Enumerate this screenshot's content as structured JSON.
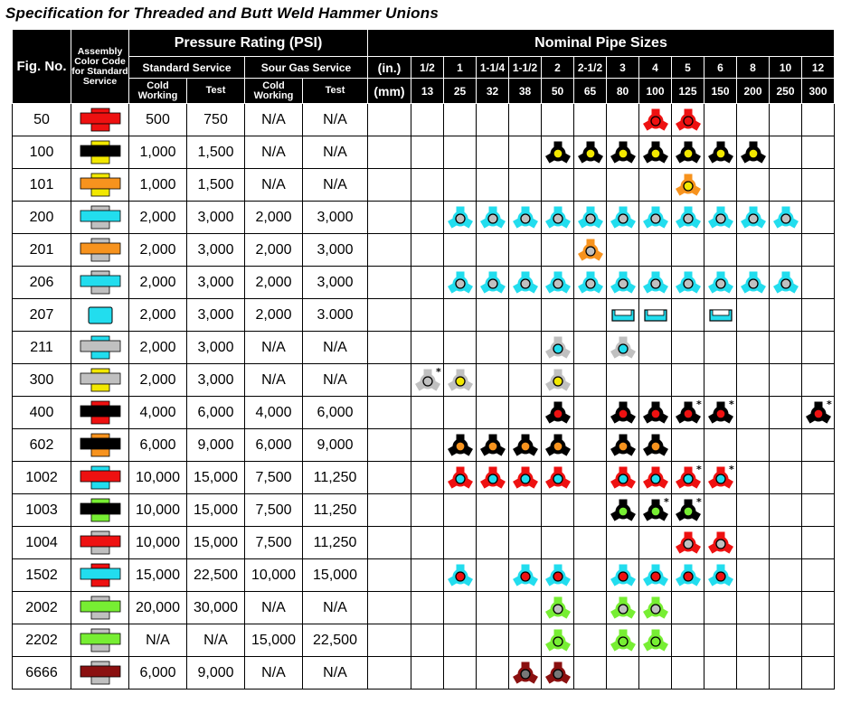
{
  "title": "Specification for Threaded and Butt Weld Hammer Unions",
  "header": {
    "fig": "Fig. No.",
    "assembly": "Assembly Color Code for Standard Service",
    "pressure": "Pressure Rating (PSI)",
    "standard_service": "Standard Service",
    "sour_gas_service": "Sour Gas Service",
    "cold_working": "Cold Working",
    "test": "Test",
    "nominal": "Nominal Pipe Sizes",
    "in_label": "(in.)",
    "mm_label": "(mm)",
    "sizes_in": [
      "1/2",
      "1",
      "1-1/4",
      "1-1/2",
      "2",
      "2-1/2",
      "3",
      "4",
      "5",
      "6",
      "8",
      "10",
      "12"
    ],
    "sizes_mm": [
      "13",
      "25",
      "32",
      "38",
      "50",
      "65",
      "80",
      "100",
      "125",
      "150",
      "200",
      "250",
      "300"
    ]
  },
  "colors": {
    "red": "#ee1111",
    "black": "#000000",
    "yellow": "#f2e800",
    "orange": "#f7931e",
    "cyan": "#22ddee",
    "gray": "#c0c0c0",
    "green": "#77ee33",
    "maroon": "#8b1010",
    "dark_gray": "#777777"
  },
  "rows": [
    {
      "fig": "50",
      "std_cold": "500",
      "std_test": "750",
      "sour_cold": "N/A",
      "sour_test": "N/A",
      "icon": {
        "top": "red",
        "mid": "red",
        "bot": "red"
      },
      "cells": {
        "4": {
          "type": "wing",
          "outer": "red",
          "inner": "red"
        },
        "5": {
          "type": "wing",
          "outer": "red",
          "inner": "red"
        }
      }
    },
    {
      "fig": "100",
      "std_cold": "1,000",
      "std_test": "1,500",
      "sour_cold": "N/A",
      "sour_test": "N/A",
      "icon": {
        "top": "yellow",
        "mid": "black",
        "bot": "yellow"
      },
      "cells": {
        "2": {
          "type": "wing",
          "outer": "black",
          "inner": "yellow"
        },
        "2-1/2": {
          "type": "wing",
          "outer": "black",
          "inner": "yellow"
        },
        "3": {
          "type": "wing",
          "outer": "black",
          "inner": "yellow"
        },
        "4": {
          "type": "wing",
          "outer": "black",
          "inner": "yellow"
        },
        "5": {
          "type": "wing",
          "outer": "black",
          "inner": "yellow"
        },
        "6": {
          "type": "wing",
          "outer": "black",
          "inner": "yellow"
        },
        "8": {
          "type": "wing",
          "outer": "black",
          "inner": "yellow"
        }
      }
    },
    {
      "fig": "101",
      "std_cold": "1,000",
      "std_test": "1,500",
      "sour_cold": "N/A",
      "sour_test": "N/A",
      "icon": {
        "top": "yellow",
        "mid": "orange",
        "bot": "yellow"
      },
      "cells": {
        "5": {
          "type": "wing",
          "outer": "orange",
          "inner": "yellow"
        }
      }
    },
    {
      "fig": "200",
      "std_cold": "2,000",
      "std_test": "3,000",
      "sour_cold": "2,000",
      "sour_test": "3,000",
      "icon": {
        "top": "gray",
        "mid": "cyan",
        "bot": "gray"
      },
      "cells": {
        "1": {
          "type": "wing",
          "outer": "cyan",
          "inner": "gray"
        },
        "1-1/4": {
          "type": "wing",
          "outer": "cyan",
          "inner": "gray"
        },
        "1-1/2": {
          "type": "wing",
          "outer": "cyan",
          "inner": "gray"
        },
        "2": {
          "type": "wing",
          "outer": "cyan",
          "inner": "gray"
        },
        "2-1/2": {
          "type": "wing",
          "outer": "cyan",
          "inner": "gray"
        },
        "3": {
          "type": "wing",
          "outer": "cyan",
          "inner": "gray"
        },
        "4": {
          "type": "wing",
          "outer": "cyan",
          "inner": "gray"
        },
        "5": {
          "type": "wing",
          "outer": "cyan",
          "inner": "gray"
        },
        "6": {
          "type": "wing",
          "outer": "cyan",
          "inner": "gray"
        },
        "8": {
          "type": "wing",
          "outer": "cyan",
          "inner": "gray"
        },
        "10": {
          "type": "wing",
          "outer": "cyan",
          "inner": "gray"
        }
      }
    },
    {
      "fig": "201",
      "std_cold": "2,000",
      "std_test": "3,000",
      "sour_cold": "2,000",
      "sour_test": "3,000",
      "icon": {
        "top": "gray",
        "mid": "orange",
        "bot": "gray"
      },
      "cells": {
        "2-1/2": {
          "type": "wing",
          "outer": "orange",
          "inner": "gray"
        }
      }
    },
    {
      "fig": "206",
      "std_cold": "2,000",
      "std_test": "3,000",
      "sour_cold": "2,000",
      "sour_test": "3,000",
      "icon": {
        "top": "gray",
        "mid": "cyan",
        "bot": "gray"
      },
      "cells": {
        "1": {
          "type": "wing",
          "outer": "cyan",
          "inner": "gray"
        },
        "1-1/4": {
          "type": "wing",
          "outer": "cyan",
          "inner": "gray"
        },
        "1-1/2": {
          "type": "wing",
          "outer": "cyan",
          "inner": "gray"
        },
        "2": {
          "type": "wing",
          "outer": "cyan",
          "inner": "gray"
        },
        "2-1/2": {
          "type": "wing",
          "outer": "cyan",
          "inner": "gray"
        },
        "3": {
          "type": "wing",
          "outer": "cyan",
          "inner": "gray"
        },
        "4": {
          "type": "wing",
          "outer": "cyan",
          "inner": "gray"
        },
        "5": {
          "type": "wing",
          "outer": "cyan",
          "inner": "gray"
        },
        "6": {
          "type": "wing",
          "outer": "cyan",
          "inner": "gray"
        },
        "8": {
          "type": "wing",
          "outer": "cyan",
          "inner": "gray"
        },
        "10": {
          "type": "wing",
          "outer": "cyan",
          "inner": "gray"
        }
      }
    },
    {
      "fig": "207",
      "std_cold": "2,000",
      "std_test": "3,000",
      "sour_cold": "2,000",
      "sour_test": "3.000",
      "icon": {
        "top": "cyan",
        "mid": "cyan",
        "bot": "cyan",
        "style": "plate"
      },
      "cells": {
        "3": {
          "type": "plate",
          "outer": "cyan"
        },
        "4": {
          "type": "plate",
          "outer": "cyan"
        },
        "6": {
          "type": "plate",
          "outer": "cyan"
        }
      }
    },
    {
      "fig": "211",
      "std_cold": "2,000",
      "std_test": "3,000",
      "sour_cold": "N/A",
      "sour_test": "N/A",
      "icon": {
        "top": "cyan",
        "mid": "gray",
        "bot": "cyan"
      },
      "cells": {
        "2": {
          "type": "wing",
          "outer": "gray",
          "inner": "cyan"
        },
        "3": {
          "type": "wing",
          "outer": "gray",
          "inner": "cyan"
        }
      }
    },
    {
      "fig": "300",
      "std_cold": "2,000",
      "std_test": "3,000",
      "sour_cold": "N/A",
      "sour_test": "N/A",
      "icon": {
        "top": "yellow",
        "mid": "gray",
        "bot": "yellow"
      },
      "cells": {
        "1/2": {
          "type": "wing",
          "outer": "gray",
          "inner": "gray",
          "star": true
        },
        "1": {
          "type": "wing",
          "outer": "gray",
          "inner": "yellow"
        },
        "2": {
          "type": "wing",
          "outer": "gray",
          "inner": "yellow"
        }
      }
    },
    {
      "fig": "400",
      "std_cold": "4,000",
      "std_test": "6,000",
      "sour_cold": "4,000",
      "sour_test": "6,000",
      "icon": {
        "top": "red",
        "mid": "black",
        "bot": "red"
      },
      "cells": {
        "2": {
          "type": "wing",
          "outer": "black",
          "inner": "red"
        },
        "3": {
          "type": "wing",
          "outer": "black",
          "inner": "red"
        },
        "4": {
          "type": "wing",
          "outer": "black",
          "inner": "red"
        },
        "5": {
          "type": "wing",
          "outer": "black",
          "inner": "red",
          "star": true
        },
        "6": {
          "type": "wing",
          "outer": "black",
          "inner": "red",
          "star": true
        },
        "12": {
          "type": "wing",
          "outer": "black",
          "inner": "red",
          "star": true
        }
      }
    },
    {
      "fig": "602",
      "std_cold": "6,000",
      "std_test": "9,000",
      "sour_cold": "6,000",
      "sour_test": "9,000",
      "icon": {
        "top": "orange",
        "mid": "black",
        "bot": "orange"
      },
      "cells": {
        "1": {
          "type": "wing",
          "outer": "black",
          "inner": "orange"
        },
        "1-1/4": {
          "type": "wing",
          "outer": "black",
          "inner": "orange"
        },
        "1-1/2": {
          "type": "wing",
          "outer": "black",
          "inner": "orange"
        },
        "2": {
          "type": "wing",
          "outer": "black",
          "inner": "orange"
        },
        "3": {
          "type": "wing",
          "outer": "black",
          "inner": "orange"
        },
        "4": {
          "type": "wing",
          "outer": "black",
          "inner": "orange"
        }
      }
    },
    {
      "fig": "1002",
      "std_cold": "10,000",
      "std_test": "15,000",
      "sour_cold": "7,500",
      "sour_test": "11,250",
      "icon": {
        "top": "cyan",
        "mid": "red",
        "bot": "cyan"
      },
      "cells": {
        "1": {
          "type": "wing",
          "outer": "red",
          "inner": "cyan"
        },
        "1-1/4": {
          "type": "wing",
          "outer": "red",
          "inner": "cyan"
        },
        "1-1/2": {
          "type": "wing",
          "outer": "red",
          "inner": "cyan"
        },
        "2": {
          "type": "wing",
          "outer": "red",
          "inner": "cyan"
        },
        "3": {
          "type": "wing",
          "outer": "red",
          "inner": "cyan"
        },
        "4": {
          "type": "wing",
          "outer": "red",
          "inner": "cyan"
        },
        "5": {
          "type": "wing",
          "outer": "red",
          "inner": "cyan",
          "star": true
        },
        "6": {
          "type": "wing",
          "outer": "red",
          "inner": "cyan",
          "star": true
        }
      }
    },
    {
      "fig": "1003",
      "std_cold": "10,000",
      "std_test": "15,000",
      "sour_cold": "7,500",
      "sour_test": "11,250",
      "icon": {
        "top": "green",
        "mid": "black",
        "bot": "green"
      },
      "cells": {
        "3": {
          "type": "wing",
          "outer": "black",
          "inner": "green"
        },
        "4": {
          "type": "wing",
          "outer": "black",
          "inner": "green",
          "star": true
        },
        "5": {
          "type": "wing",
          "outer": "black",
          "inner": "green",
          "star": true
        }
      }
    },
    {
      "fig": "1004",
      "std_cold": "10,000",
      "std_test": "15,000",
      "sour_cold": "7,500",
      "sour_test": "11,250",
      "icon": {
        "top": "gray",
        "mid": "red",
        "bot": "gray"
      },
      "cells": {
        "5": {
          "type": "wing",
          "outer": "red",
          "inner": "gray"
        },
        "6": {
          "type": "wing",
          "outer": "red",
          "inner": "gray"
        }
      }
    },
    {
      "fig": "1502",
      "std_cold": "15,000",
      "std_test": "22,500",
      "sour_cold": "10,000",
      "sour_test": "15,000",
      "icon": {
        "top": "red",
        "mid": "cyan",
        "bot": "red"
      },
      "cells": {
        "1": {
          "type": "wing",
          "outer": "cyan",
          "inner": "red"
        },
        "1-1/2": {
          "type": "wing",
          "outer": "cyan",
          "inner": "red"
        },
        "2": {
          "type": "wing",
          "outer": "cyan",
          "inner": "red"
        },
        "3": {
          "type": "wing",
          "outer": "cyan",
          "inner": "red"
        },
        "4": {
          "type": "wing",
          "outer": "cyan",
          "inner": "red"
        },
        "5": {
          "type": "wing",
          "outer": "cyan",
          "inner": "red"
        },
        "6": {
          "type": "wing",
          "outer": "cyan",
          "inner": "red"
        }
      }
    },
    {
      "fig": "2002",
      "std_cold": "20,000",
      "std_test": "30,000",
      "sour_cold": "N/A",
      "sour_test": "N/A",
      "icon": {
        "top": "gray",
        "mid": "green",
        "bot": "gray"
      },
      "cells": {
        "2": {
          "type": "wing",
          "outer": "green",
          "inner": "gray"
        },
        "3": {
          "type": "wing",
          "outer": "green",
          "inner": "gray"
        },
        "4": {
          "type": "wing",
          "outer": "green",
          "inner": "gray"
        }
      }
    },
    {
      "fig": "2202",
      "std_cold": "N/A",
      "std_test": "N/A",
      "sour_cold": "15,000",
      "sour_test": "22,500",
      "icon": {
        "top": "gray",
        "mid": "green",
        "bot": "gray"
      },
      "cells": {
        "2": {
          "type": "wing",
          "outer": "green",
          "inner": "green"
        },
        "3": {
          "type": "wing",
          "outer": "green",
          "inner": "green"
        },
        "4": {
          "type": "wing",
          "outer": "green",
          "inner": "green"
        }
      }
    },
    {
      "fig": "6666",
      "std_cold": "6,000",
      "std_test": "9,000",
      "sour_cold": "N/A",
      "sour_test": "N/A",
      "icon": {
        "top": "gray",
        "mid": "maroon",
        "bot": "gray"
      },
      "cells": {
        "1-1/2": {
          "type": "wing",
          "outer": "maroon",
          "inner": "dark_gray"
        },
        "2": {
          "type": "wing",
          "outer": "maroon",
          "inner": "dark_gray"
        }
      }
    }
  ]
}
